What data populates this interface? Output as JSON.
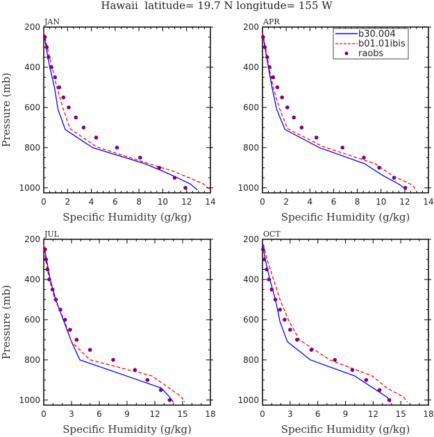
{
  "title": "Hawaii  latitude= 19.7 N longitude= 155 W",
  "colors": {
    "b30.004": "#0000ff",
    "b01.01ibis": "#ff0000",
    "raobs": "#800080"
  },
  "legend": {
    "placement": "top-right of APR panel",
    "entries": [
      "b30.004",
      "b01.01ibis",
      "raobs"
    ]
  },
  "chart_data": [
    {
      "type": "line",
      "panel_label": "JAN",
      "xlabel": "Specific Humidity (g/kg)",
      "ylabel": "Pressure (mb)",
      "xlim": [
        0,
        14
      ],
      "xticks": [
        0,
        2,
        4,
        6,
        8,
        10,
        12,
        14
      ],
      "ylim": [
        200,
        1025
      ],
      "y_reversed": true,
      "yticks": [
        200,
        400,
        600,
        800,
        1000
      ],
      "series": [
        {
          "name": "b30.004",
          "style": "solid",
          "points": [
            [
              0,
              225
            ],
            [
              0.2,
              300
            ],
            [
              0.5,
              400
            ],
            [
              0.9,
              500
            ],
            [
              1.2,
              610
            ],
            [
              1.8,
              710
            ],
            [
              4.1,
              800
            ],
            [
              8.5,
              880
            ],
            [
              10.5,
              930
            ],
            [
              12.3,
              980
            ],
            [
              12.9,
              1010
            ]
          ]
        },
        {
          "name": "b01.01ibis",
          "style": "dashed",
          "points": [
            [
              0,
              225
            ],
            [
              0.3,
              300
            ],
            [
              0.7,
              400
            ],
            [
              1.1,
              500
            ],
            [
              1.6,
              600
            ],
            [
              2.2,
              705
            ],
            [
              4.4,
              795
            ],
            [
              8.3,
              870
            ],
            [
              11,
              920
            ],
            [
              13.4,
              980
            ],
            [
              14,
              1010
            ]
          ]
        },
        {
          "name": "raobs",
          "style": "markers",
          "points": [
            [
              0.1,
              250
            ],
            [
              0.25,
              300
            ],
            [
              0.4,
              350
            ],
            [
              0.65,
              400
            ],
            [
              0.95,
              450
            ],
            [
              1.3,
              500
            ],
            [
              1.65,
              550
            ],
            [
              2.1,
              600
            ],
            [
              2.7,
              650
            ],
            [
              3.35,
              700
            ],
            [
              4.4,
              750
            ],
            [
              6.15,
              800
            ],
            [
              8.1,
              850
            ],
            [
              9.7,
              900
            ],
            [
              11.0,
              950
            ],
            [
              11.9,
              1000
            ]
          ]
        }
      ]
    },
    {
      "type": "line",
      "panel_label": "APR",
      "xlabel": "Specific Humidity (g/kg)",
      "ylabel": "",
      "xlim": [
        0,
        14
      ],
      "xticks": [
        0,
        2,
        4,
        6,
        8,
        10,
        12,
        14
      ],
      "ylim": [
        200,
        1025
      ],
      "y_reversed": true,
      "yticks": [
        200,
        400,
        600,
        800,
        1000
      ],
      "series": [
        {
          "name": "b30.004",
          "style": "solid",
          "points": [
            [
              0,
              225
            ],
            [
              0.2,
              300
            ],
            [
              0.5,
              400
            ],
            [
              0.8,
              500
            ],
            [
              1.2,
              610
            ],
            [
              1.9,
              710
            ],
            [
              4.8,
              800
            ],
            [
              8.6,
              880
            ],
            [
              10.2,
              940
            ],
            [
              11.6,
              985
            ],
            [
              12.1,
              1010
            ]
          ]
        },
        {
          "name": "b01.01ibis",
          "style": "dashed",
          "points": [
            [
              0,
              225
            ],
            [
              0.25,
              300
            ],
            [
              0.55,
              400
            ],
            [
              0.9,
              500
            ],
            [
              1.4,
              600
            ],
            [
              2.1,
              705
            ],
            [
              5.1,
              795
            ],
            [
              9.5,
              880
            ],
            [
              11,
              940
            ],
            [
              12.6,
              985
            ],
            [
              13,
              1010
            ]
          ]
        },
        {
          "name": "raobs",
          "style": "markers",
          "points": [
            [
              0.05,
              250
            ],
            [
              0.2,
              300
            ],
            [
              0.4,
              350
            ],
            [
              0.6,
              400
            ],
            [
              0.9,
              450
            ],
            [
              1.25,
              500
            ],
            [
              1.65,
              550
            ],
            [
              2.1,
              600
            ],
            [
              2.65,
              650
            ],
            [
              3.3,
              700
            ],
            [
              4.55,
              750
            ],
            [
              6.75,
              800
            ],
            [
              8.55,
              850
            ],
            [
              9.85,
              900
            ],
            [
              11.1,
              950
            ],
            [
              12.05,
              1000
            ]
          ]
        }
      ]
    },
    {
      "type": "line",
      "panel_label": "JUL",
      "xlabel": "Specific Humidity (g/kg)",
      "ylabel": "Pressure (mb)",
      "xlim": [
        0,
        18
      ],
      "xticks": [
        0,
        3,
        6,
        9,
        12,
        15,
        18
      ],
      "ylim": [
        200,
        1025
      ],
      "y_reversed": true,
      "yticks": [
        200,
        400,
        600,
        800,
        1000
      ],
      "series": [
        {
          "name": "b30.004",
          "style": "solid",
          "points": [
            [
              0,
              225
            ],
            [
              0.3,
              300
            ],
            [
              0.7,
              400
            ],
            [
              1.3,
              500
            ],
            [
              2.1,
              600
            ],
            [
              3,
              710
            ],
            [
              3.9,
              800
            ],
            [
              12.7,
              940
            ],
            [
              13.6,
              985
            ],
            [
              14,
              1010
            ]
          ]
        },
        {
          "name": "b01.01ibis",
          "style": "dashed",
          "points": [
            [
              0,
              225
            ],
            [
              0.2,
              300
            ],
            [
              0.6,
              400
            ],
            [
              1.2,
              500
            ],
            [
              2.2,
              600
            ],
            [
              3,
              710
            ],
            [
              5,
              800
            ],
            [
              11.7,
              880
            ],
            [
              14.9,
              985
            ],
            [
              15.2,
              1010
            ]
          ]
        },
        {
          "name": "raobs",
          "style": "markers",
          "points": [
            [
              0.15,
              250
            ],
            [
              0.25,
              300
            ],
            [
              0.4,
              350
            ],
            [
              0.6,
              400
            ],
            [
              0.95,
              450
            ],
            [
              1.3,
              500
            ],
            [
              1.8,
              550
            ],
            [
              2.3,
              600
            ],
            [
              2.85,
              650
            ],
            [
              3.55,
              700
            ],
            [
              5.0,
              750
            ],
            [
              7.5,
              800
            ],
            [
              9.85,
              850
            ],
            [
              11.2,
              900
            ],
            [
              12.65,
              950
            ],
            [
              13.6,
              1000
            ]
          ]
        }
      ]
    },
    {
      "type": "line",
      "panel_label": "OCT",
      "xlabel": "Specific Humidity (g/kg)",
      "ylabel": "",
      "xlim": [
        0,
        18
      ],
      "xticks": [
        0,
        3,
        6,
        9,
        12,
        15,
        18
      ],
      "ylim": [
        200,
        1025
      ],
      "y_reversed": true,
      "yticks": [
        200,
        400,
        600,
        800,
        1000
      ],
      "series": [
        {
          "name": "b30.004",
          "style": "solid",
          "points": [
            [
              0,
              225
            ],
            [
              0.3,
              300
            ],
            [
              0.8,
              400
            ],
            [
              1.4,
              500
            ],
            [
              1.9,
              610
            ],
            [
              2.7,
              710
            ],
            [
              5.2,
              800
            ],
            [
              10,
              880
            ],
            [
              13.5,
              985
            ],
            [
              13.9,
              1010
            ]
          ]
        },
        {
          "name": "b01.01ibis",
          "style": "dashed",
          "points": [
            [
              0.1,
              225
            ],
            [
              0.5,
              300
            ],
            [
              1.2,
              400
            ],
            [
              1.9,
              500
            ],
            [
              2.8,
              600
            ],
            [
              4,
              700
            ],
            [
              7.3,
              800
            ],
            [
              11.9,
              880
            ],
            [
              13.5,
              940
            ],
            [
              15.3,
              985
            ],
            [
              15.7,
              1010
            ]
          ]
        },
        {
          "name": "raobs",
          "style": "markers",
          "points": [
            [
              0.05,
              250
            ],
            [
              0.2,
              300
            ],
            [
              0.45,
              350
            ],
            [
              0.7,
              400
            ],
            [
              1.0,
              450
            ],
            [
              1.4,
              500
            ],
            [
              1.9,
              550
            ],
            [
              2.4,
              600
            ],
            [
              3.0,
              650
            ],
            [
              3.75,
              700
            ],
            [
              5.3,
              750
            ],
            [
              7.85,
              800
            ],
            [
              9.75,
              850
            ],
            [
              11.25,
              900
            ],
            [
              12.7,
              950
            ],
            [
              13.75,
              1000
            ]
          ]
        }
      ]
    }
  ]
}
